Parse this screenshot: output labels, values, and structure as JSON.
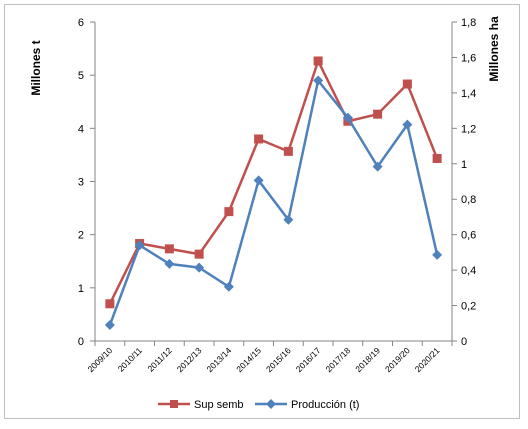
{
  "chart_data": {
    "type": "line",
    "categories": [
      "2009/10",
      "2010/11",
      "2011/12",
      "2012/13",
      "2013/14",
      "2014/15",
      "2015/16",
      "2016/17",
      "2017/18",
      "2018/19",
      "2019/20",
      "2020/21"
    ],
    "series": [
      {
        "name": "Sup semb",
        "axis": "right",
        "color": "#c0504d",
        "marker": "square",
        "values": [
          0.21,
          0.55,
          0.52,
          0.49,
          0.73,
          1.14,
          1.07,
          1.58,
          1.24,
          1.28,
          1.45,
          1.03
        ]
      },
      {
        "name": "Producción (t)",
        "axis": "left",
        "color": "#4f81bd",
        "marker": "diamond",
        "values": [
          0.3,
          1.8,
          1.45,
          1.38,
          1.02,
          3.02,
          2.28,
          4.9,
          4.2,
          3.28,
          4.07,
          1.62
        ]
      }
    ],
    "y_left": {
      "label": "Millones t",
      "ylim": [
        0,
        6
      ],
      "ticks": [
        0,
        1,
        2,
        3,
        4,
        5,
        6
      ],
      "tick_labels": [
        "0",
        "1",
        "2",
        "3",
        "4",
        "5",
        "6"
      ]
    },
    "y_right": {
      "label": "Millones ha",
      "ylim": [
        0,
        1.8
      ],
      "ticks": [
        0,
        0.2,
        0.4,
        0.6,
        0.8,
        1.0,
        1.2,
        1.4,
        1.6,
        1.8
      ],
      "tick_labels": [
        "0",
        "0,2",
        "0,4",
        "0,6",
        "0,8",
        "1",
        "1,2",
        "1,4",
        "1,6",
        "1,8"
      ]
    },
    "grid": false,
    "legend_position": "bottom"
  }
}
